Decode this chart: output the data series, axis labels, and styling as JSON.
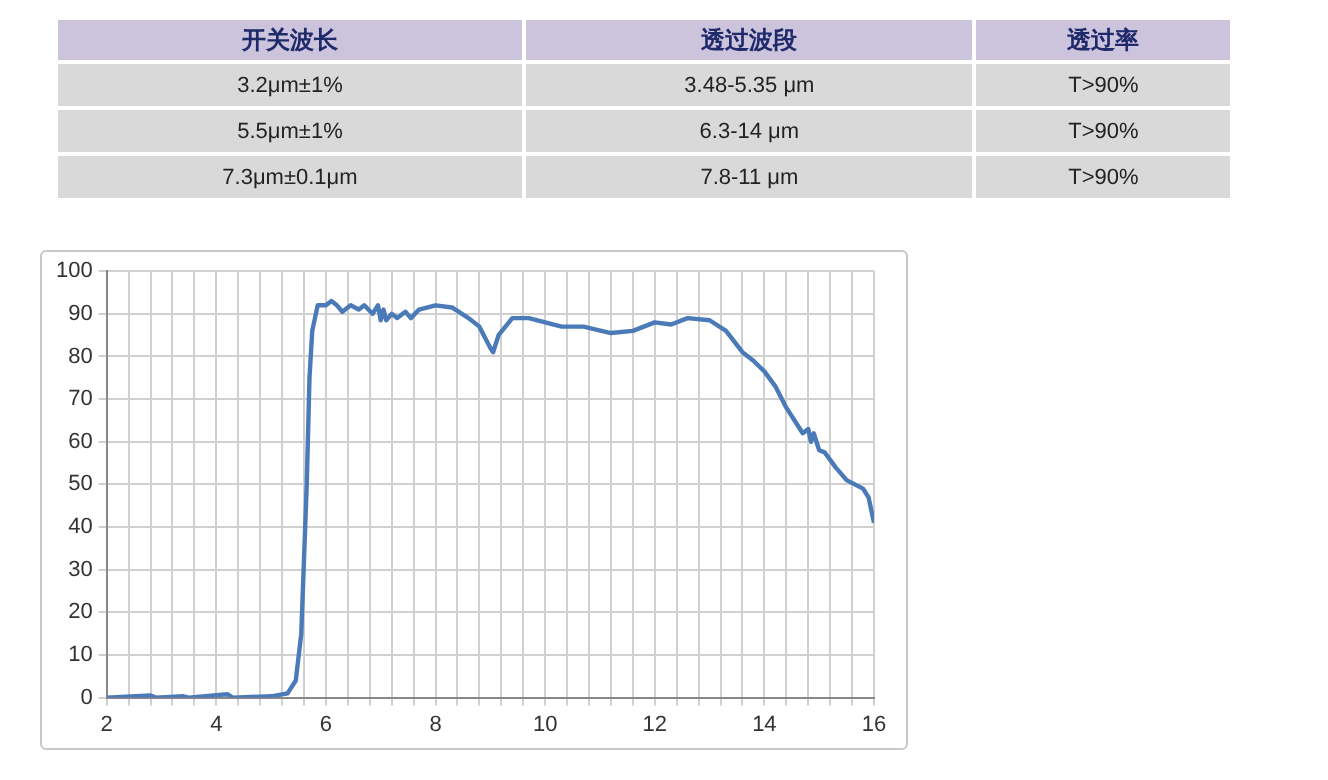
{
  "chart_data": [
    {
      "type": "other",
      "categories": [
        "开关波长",
        "透过波段",
        "透过率"
      ],
      "cell_labels": [
        [
          "3.2μm±1%",
          "3.48-5.35 μm",
          "T>90%"
        ],
        [
          "5.5μm±1%",
          "6.3-14 μm",
          "T>90%"
        ],
        [
          "7.3μm±0.1μm",
          "7.8-11 μm",
          "T>90%"
        ]
      ]
    },
    {
      "type": "line",
      "grid": true,
      "legend": false,
      "marker": "none",
      "line_style": "solid",
      "xlim": [
        2,
        16
      ],
      "ylim": [
        0,
        100
      ],
      "yticks": [
        0,
        10,
        20,
        30,
        40,
        50,
        60,
        70,
        80,
        90,
        100
      ],
      "xticks": [
        2,
        {
          "value": 2.4,
          "label": null
        },
        {
          "value": 2.8,
          "label": null
        },
        {
          "value": 3.2,
          "label": null
        },
        {
          "value": 3.6,
          "label": null
        },
        4,
        {
          "value": 4.4,
          "label": null
        },
        {
          "value": 4.8,
          "label": null
        },
        {
          "value": 5.2,
          "label": null
        },
        {
          "value": 5.6,
          "label": null
        },
        6,
        {
          "value": 6.4,
          "label": null
        },
        {
          "value": 6.8,
          "label": null
        },
        {
          "value": 7.2,
          "label": null
        },
        {
          "value": 7.6,
          "label": null
        },
        8,
        {
          "value": 8.4,
          "label": null
        },
        {
          "value": 8.8,
          "label": null
        },
        {
          "value": 9.2,
          "label": null
        },
        {
          "value": 9.6,
          "label": null
        },
        10,
        {
          "value": 10.4,
          "label": null
        },
        {
          "value": 10.8,
          "label": null
        },
        {
          "value": 11.2,
          "label": null
        },
        {
          "value": 11.6,
          "label": null
        },
        12,
        {
          "value": 12.4,
          "label": null
        },
        {
          "value": 12.8,
          "label": null
        },
        {
          "value": 13.2,
          "label": null
        },
        {
          "value": 13.6,
          "label": null
        },
        14,
        {
          "value": 14.4,
          "label": null
        },
        {
          "value": 14.8,
          "label": null
        },
        {
          "value": 15.2,
          "label": null
        },
        {
          "value": 15.6,
          "label": null
        },
        16
      ],
      "series": [
        {
          "color": "#4a7ab8",
          "x": [
            2,
            2.8,
            2.9,
            3.4,
            3.5,
            4.2,
            4.3,
            5.0,
            5.3,
            5.45,
            5.55,
            5.65,
            5.7,
            5.75,
            5.85,
            6.0,
            6.1,
            6.2,
            6.3,
            6.45,
            6.6,
            6.7,
            6.85,
            6.95,
            7.0,
            7.05,
            7.1,
            7.2,
            7.3,
            7.45,
            7.55,
            7.7,
            8.0,
            8.3,
            8.6,
            8.8,
            9.0,
            9.05,
            9.15,
            9.4,
            9.7,
            10.0,
            10.3,
            10.7,
            11.2,
            11.6,
            12.0,
            12.3,
            12.6,
            13.0,
            13.3,
            13.6,
            13.8,
            14.0,
            14.2,
            14.4,
            14.6,
            14.7,
            14.8,
            14.85,
            14.9,
            15.0,
            15.1,
            15.3,
            15.5,
            15.8,
            15.9,
            16
          ],
          "values": [
            0,
            0.5,
            0,
            0.3,
            0,
            0.8,
            0,
            0.3,
            1,
            4,
            15,
            50,
            75,
            86,
            92,
            92,
            93,
            92,
            90.5,
            92,
            91,
            92,
            90,
            92,
            88.5,
            91,
            88.5,
            90,
            89,
            90.5,
            89,
            91,
            92,
            91.5,
            89,
            87,
            82,
            81,
            85,
            89,
            89,
            88,
            87,
            87,
            85.5,
            86,
            88,
            87.5,
            89,
            88.5,
            86,
            81,
            79,
            76.5,
            73,
            68,
            64,
            62,
            63,
            60,
            62,
            58,
            57.5,
            54,
            51,
            49,
            47,
            41
          ]
        }
      ]
    }
  ]
}
